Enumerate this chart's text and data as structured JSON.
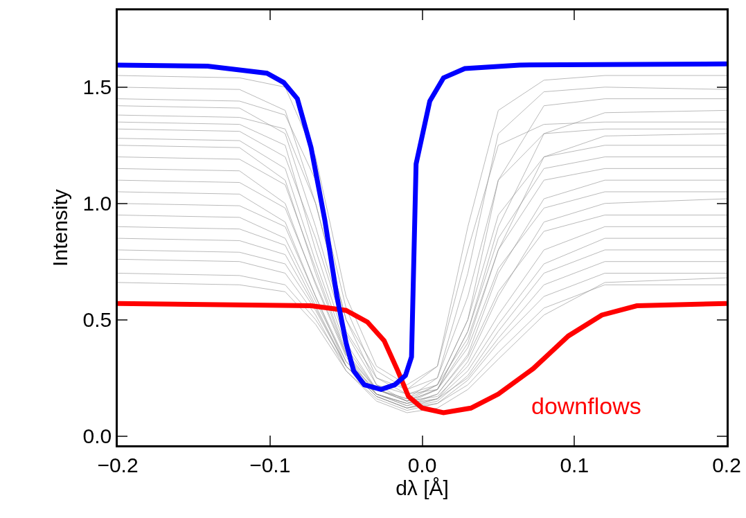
{
  "chart_data": {
    "type": "line",
    "xlabel": "dλ [Å]",
    "ylabel": "Intensity",
    "x": [
      -0.2,
      -0.12,
      -0.09,
      -0.07,
      -0.05,
      -0.03,
      -0.01,
      0.01,
      0.03,
      0.05,
      0.08,
      0.12,
      0.2
    ],
    "series": [
      {
        "color": "#8c8c8c",
        "values": [
          1.55,
          1.54,
          1.5,
          1.2,
          0.6,
          0.3,
          0.22,
          0.3,
          0.9,
          1.4,
          1.53,
          1.55,
          1.55
        ]
      },
      {
        "color": "#8c8c8c",
        "values": [
          1.5,
          1.49,
          1.4,
          1.0,
          0.5,
          0.28,
          0.2,
          0.25,
          0.7,
          1.3,
          1.48,
          1.5,
          1.49
        ]
      },
      {
        "color": "#8c8c8c",
        "values": [
          1.45,
          1.44,
          1.38,
          1.1,
          0.55,
          0.25,
          0.18,
          0.22,
          0.5,
          1.1,
          1.42,
          1.45,
          1.45
        ]
      },
      {
        "color": "#8c8c8c",
        "values": [
          1.42,
          1.41,
          1.3,
          0.9,
          0.45,
          0.25,
          0.2,
          0.3,
          0.8,
          1.25,
          1.34,
          1.35,
          1.35
        ]
      },
      {
        "color": "#8c8c8c",
        "values": [
          1.38,
          1.37,
          1.32,
          1.0,
          0.5,
          0.22,
          0.15,
          0.2,
          0.45,
          0.9,
          1.3,
          1.39,
          1.4
        ]
      },
      {
        "color": "#8c8c8c",
        "values": [
          1.35,
          1.34,
          1.25,
          0.8,
          0.4,
          0.2,
          0.16,
          0.25,
          0.6,
          1.1,
          1.3,
          1.32,
          1.32
        ]
      },
      {
        "color": "#8c8c8c",
        "values": [
          1.32,
          1.31,
          1.2,
          0.85,
          0.44,
          0.22,
          0.18,
          0.2,
          0.4,
          0.8,
          1.2,
          1.29,
          1.3
        ]
      },
      {
        "color": "#8c8c8c",
        "values": [
          1.28,
          1.27,
          1.15,
          0.75,
          0.38,
          0.2,
          0.15,
          0.22,
          0.5,
          0.95,
          1.2,
          1.25,
          1.25
        ]
      },
      {
        "color": "#8c8c8c",
        "values": [
          1.25,
          1.24,
          1.1,
          0.7,
          0.35,
          0.18,
          0.14,
          0.2,
          0.45,
          0.85,
          1.15,
          1.2,
          1.2
        ]
      },
      {
        "color": "#8c8c8c",
        "values": [
          1.2,
          1.19,
          1.08,
          0.72,
          0.36,
          0.2,
          0.16,
          0.22,
          0.42,
          0.8,
          1.1,
          1.15,
          1.15
        ]
      },
      {
        "color": "#8c8c8c",
        "values": [
          1.15,
          1.14,
          1.0,
          0.65,
          0.34,
          0.18,
          0.13,
          0.18,
          0.35,
          0.7,
          1.02,
          1.1,
          1.1
        ]
      },
      {
        "color": "#8c8c8c",
        "values": [
          1.1,
          1.09,
          0.98,
          0.66,
          0.35,
          0.2,
          0.15,
          0.2,
          0.38,
          0.72,
          0.98,
          1.05,
          1.05
        ]
      },
      {
        "color": "#8c8c8c",
        "values": [
          1.05,
          1.04,
          0.92,
          0.6,
          0.3,
          0.17,
          0.12,
          0.16,
          0.32,
          0.6,
          0.92,
          1.0,
          1.02
        ]
      },
      {
        "color": "#8c8c8c",
        "values": [
          1.0,
          0.99,
          0.9,
          0.6,
          0.32,
          0.18,
          0.14,
          0.18,
          0.34,
          0.62,
          0.88,
          0.95,
          0.95
        ]
      },
      {
        "color": "#8c8c8c",
        "values": [
          0.95,
          0.94,
          0.85,
          0.58,
          0.32,
          0.2,
          0.15,
          0.17,
          0.3,
          0.52,
          0.8,
          0.9,
          0.9
        ]
      },
      {
        "color": "#8c8c8c",
        "values": [
          0.9,
          0.89,
          0.82,
          0.56,
          0.3,
          0.18,
          0.13,
          0.16,
          0.28,
          0.48,
          0.74,
          0.85,
          0.85
        ]
      },
      {
        "color": "#8c8c8c",
        "values": [
          0.85,
          0.84,
          0.78,
          0.55,
          0.3,
          0.17,
          0.12,
          0.15,
          0.26,
          0.45,
          0.7,
          0.8,
          0.8
        ]
      },
      {
        "color": "#8c8c8c",
        "values": [
          0.8,
          0.79,
          0.74,
          0.54,
          0.3,
          0.18,
          0.14,
          0.16,
          0.25,
          0.42,
          0.65,
          0.75,
          0.75
        ]
      },
      {
        "color": "#8c8c8c",
        "values": [
          0.76,
          0.75,
          0.7,
          0.52,
          0.28,
          0.16,
          0.11,
          0.14,
          0.24,
          0.4,
          0.6,
          0.7,
          0.7
        ]
      },
      {
        "color": "#8c8c8c",
        "values": [
          0.7,
          0.69,
          0.65,
          0.5,
          0.3,
          0.17,
          0.12,
          0.14,
          0.22,
          0.36,
          0.55,
          0.65,
          0.65
        ]
      },
      {
        "color": "#8c8c8c",
        "values": [
          0.66,
          0.65,
          0.62,
          0.48,
          0.28,
          0.15,
          0.1,
          0.12,
          0.2,
          0.33,
          0.52,
          0.66,
          0.68
        ]
      },
      {
        "color": "#ff0000",
        "x": [
          -0.2,
          -0.073,
          -0.05,
          -0.036,
          -0.025,
          -0.016,
          -0.009,
          0.0,
          0.014,
          0.032,
          0.05,
          0.073,
          0.096,
          0.118,
          0.141,
          0.2
        ],
        "values": [
          0.57,
          0.56,
          0.54,
          0.49,
          0.41,
          0.28,
          0.17,
          0.12,
          0.1,
          0.12,
          0.18,
          0.29,
          0.43,
          0.52,
          0.56,
          0.57
        ]
      },
      {
        "color": "#0000ff",
        "x": [
          -0.2,
          -0.141,
          -0.102,
          -0.091,
          -0.082,
          -0.073,
          -0.064,
          -0.056,
          -0.05,
          -0.045,
          -0.038,
          -0.027,
          -0.018,
          -0.011,
          -0.007,
          -0.004,
          0.005,
          0.014,
          0.028,
          0.064,
          0.2
        ],
        "values": [
          1.595,
          1.59,
          1.56,
          1.52,
          1.45,
          1.24,
          0.93,
          0.6,
          0.4,
          0.28,
          0.22,
          0.2,
          0.22,
          0.26,
          0.34,
          1.17,
          1.44,
          1.54,
          1.58,
          1.595,
          1.6
        ]
      }
    ],
    "annotations": [
      "downflows"
    ],
    "xlim": [
      -0.2,
      0.2
    ],
    "xticks": [
      {
        "value": -0.2,
        "label": "−0.2"
      },
      {
        "value": -0.1,
        "label": "−0.1"
      },
      {
        "value": 0,
        "label": "0.0"
      },
      0.1,
      0.2
    ],
    "ylim": [
      -0.04,
      1.83
    ],
    "yticks": [
      {
        "value": 0,
        "label": "0.0"
      },
      0.5,
      {
        "value": 1,
        "label": "1.0"
      },
      1.5
    ],
    "grid": false,
    "marker": "none",
    "line_style": "solid"
  }
}
